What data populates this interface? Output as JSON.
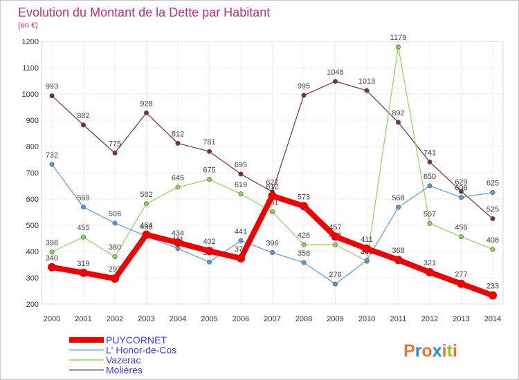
{
  "chart_data": {
    "type": "line",
    "title": "Evolution du Montant de la Dette par Habitant",
    "subtitle": "(en €)",
    "x": [
      "2000",
      "2001",
      "2002",
      "2003",
      "2004",
      "2005",
      "2006",
      "2007",
      "2008",
      "2009",
      "2010",
      "2011",
      "2012",
      "2013",
      "2014"
    ],
    "y_ticks": [
      200,
      300,
      400,
      500,
      600,
      700,
      800,
      900,
      1000,
      1100,
      1200
    ],
    "ylim": [
      200,
      1200
    ],
    "grid": true,
    "legend_position": "bottom-left",
    "series": [
      {
        "name": "PUYCORNET",
        "color": "#ee0000",
        "values": [
          340,
          319,
          297,
          464,
          434,
          402,
          374,
          612,
          573,
          457,
          411,
          368,
          321,
          277,
          233
        ]
      },
      {
        "name": "L' Honor-de-Cos",
        "color": "#5b9bd5",
        "values": [
          732,
          569,
          508,
          458,
          411,
          360,
          441,
          396,
          358,
          276,
          366,
          568,
          650,
          606,
          625
        ]
      },
      {
        "name": "Vazerac",
        "color": "#8fd45a",
        "values": [
          398,
          455,
          380,
          582,
          645,
          675,
          619,
          551,
          426,
          426,
          363,
          1179,
          507,
          456,
          408
        ]
      },
      {
        "name": "Molières",
        "color": "#7a3030",
        "values": [
          993,
          882,
          775,
          928,
          812,
          781,
          695,
          627,
          995,
          1048,
          1013,
          892,
          741,
          629,
          525
        ]
      }
    ]
  },
  "title_color": "#c0306a",
  "legend_text_color": "#3b3bff",
  "logo": {
    "text": "Proxiti"
  }
}
